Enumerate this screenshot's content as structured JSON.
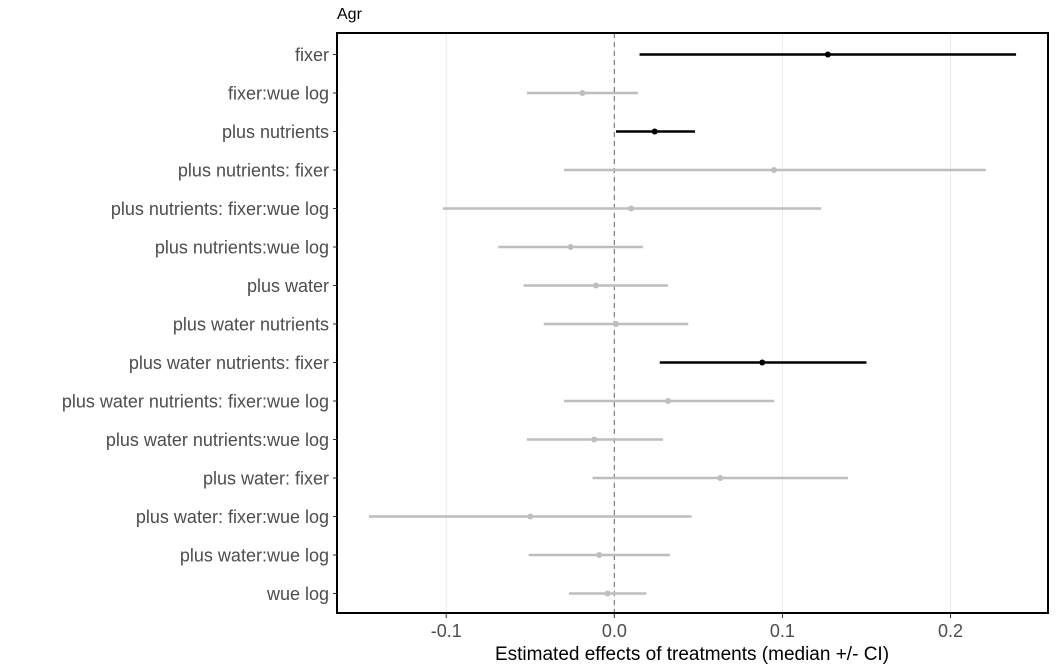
{
  "chart_data": {
    "type": "forest",
    "title": "Agr",
    "xlabel": "Estimated effects of treatments (median +/- CI)",
    "ylabel": "",
    "xlim": [
      -0.165,
      0.258
    ],
    "x_ticks": [
      -0.1,
      0.0,
      0.1,
      0.2
    ],
    "x_tick_labels": [
      "-0.1",
      "0.0",
      "0.1",
      "0.2"
    ],
    "reference_line": 0,
    "grid": "vertical",
    "colors": {
      "significant": "#000000",
      "non_significant": "#bebebe",
      "reference_line": "#7f7f7f",
      "grid": "#ebebeb"
    },
    "rows": [
      {
        "label": "fixer",
        "median": 0.127,
        "lower": 0.015,
        "upper": 0.239,
        "significant": true
      },
      {
        "label": "fixer:wue log",
        "median": -0.019,
        "lower": -0.052,
        "upper": 0.014,
        "significant": false
      },
      {
        "label": "plus nutrients",
        "median": 0.024,
        "lower": 0.001,
        "upper": 0.048,
        "significant": true
      },
      {
        "label": "plus nutrients: fixer",
        "median": 0.095,
        "lower": -0.03,
        "upper": 0.221,
        "significant": false
      },
      {
        "label": "plus nutrients: fixer:wue log",
        "median": 0.01,
        "lower": -0.102,
        "upper": 0.123,
        "significant": false
      },
      {
        "label": "plus nutrients:wue log",
        "median": -0.026,
        "lower": -0.069,
        "upper": 0.017,
        "significant": false
      },
      {
        "label": "plus water",
        "median": -0.011,
        "lower": -0.054,
        "upper": 0.032,
        "significant": false
      },
      {
        "label": "plus water nutrients",
        "median": 0.001,
        "lower": -0.042,
        "upper": 0.044,
        "significant": false
      },
      {
        "label": "plus water nutrients: fixer",
        "median": 0.088,
        "lower": 0.027,
        "upper": 0.15,
        "significant": true
      },
      {
        "label": "plus water nutrients: fixer:wue log",
        "median": 0.032,
        "lower": -0.03,
        "upper": 0.095,
        "significant": false
      },
      {
        "label": "plus water nutrients:wue log",
        "median": -0.012,
        "lower": -0.052,
        "upper": 0.029,
        "significant": false
      },
      {
        "label": "plus water: fixer",
        "median": 0.063,
        "lower": -0.013,
        "upper": 0.139,
        "significant": false
      },
      {
        "label": "plus water: fixer:wue log",
        "median": -0.05,
        "lower": -0.146,
        "upper": 0.046,
        "significant": false
      },
      {
        "label": "plus water:wue log",
        "median": -0.009,
        "lower": -0.051,
        "upper": 0.033,
        "significant": false
      },
      {
        "label": "wue log",
        "median": -0.004,
        "lower": -0.027,
        "upper": 0.019,
        "significant": false
      }
    ]
  }
}
